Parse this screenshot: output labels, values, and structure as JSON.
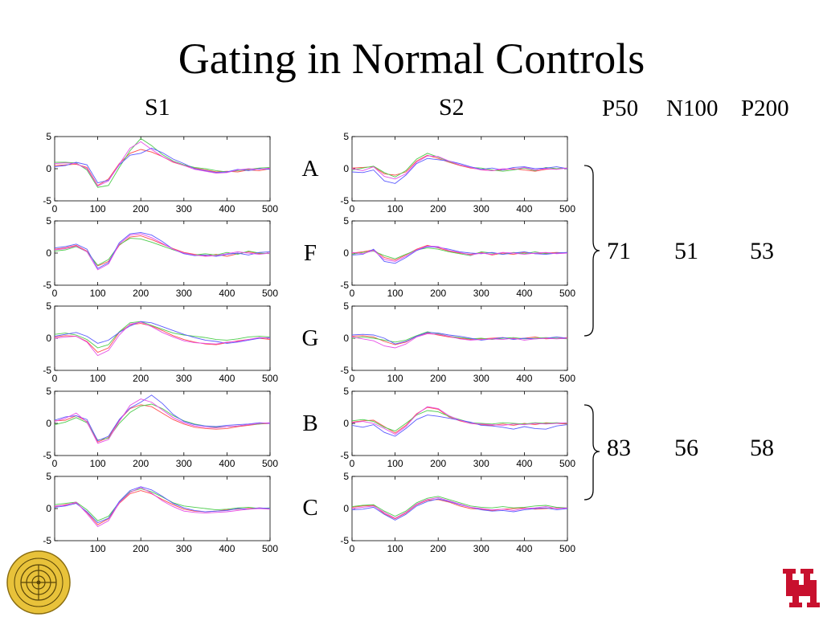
{
  "slide": {
    "title": "Gating in Normal Controls",
    "column_labels": [
      "S1",
      "S2"
    ],
    "metric_labels": [
      "P50",
      "N100",
      "P200"
    ]
  },
  "groups": [
    {
      "rows": [
        "A",
        "F",
        "G"
      ],
      "values": [
        "71",
        "51",
        "53"
      ]
    },
    {
      "rows": [
        "B",
        "C"
      ],
      "values": [
        "83",
        "56",
        "58"
      ]
    }
  ],
  "colors": {
    "red": "#ff4d4d",
    "green": "#4dcc4d",
    "blue": "#5a5aff",
    "magenta": "#e64de6",
    "logo_gold": "#e8c23a",
    "brand_red": "#c8102e"
  },
  "chart_data": {
    "type": "line",
    "x_ticks": [
      "0",
      "100",
      "200",
      "300",
      "400",
      "500"
    ],
    "y_ticks": [
      "5",
      "0",
      "-5"
    ],
    "xlim": [
      0,
      500
    ],
    "ylim": [
      -5,
      5
    ],
    "x": [
      0,
      25,
      50,
      75,
      100,
      125,
      150,
      175,
      200,
      225,
      250,
      275,
      300,
      325,
      350,
      375,
      400,
      425,
      450,
      475,
      500
    ],
    "series_colors": [
      "#ff4d4d",
      "#4dcc4d",
      "#5a5aff",
      "#e64de6"
    ],
    "panels": [
      {
        "row": "A",
        "col": "S1",
        "series": [
          [
            0.5,
            0.6,
            0.7,
            0.2,
            -2.6,
            -1.6,
            0.8,
            2.4,
            3.0,
            2.6,
            1.9,
            1.0,
            0.5,
            0.1,
            -0.2,
            -0.5,
            -0.4,
            -0.5,
            -0.2,
            -0.3,
            0.0
          ],
          [
            1.0,
            1.0,
            0.9,
            -0.2,
            -2.9,
            -2.6,
            0.2,
            2.8,
            4.7,
            3.6,
            2.2,
            1.2,
            0.6,
            0.2,
            0.0,
            -0.3,
            -0.5,
            -0.3,
            -0.1,
            0.1,
            0.2
          ],
          [
            0.3,
            0.5,
            1.0,
            0.6,
            -2.2,
            -1.8,
            0.6,
            2.1,
            2.4,
            3.2,
            2.5,
            1.5,
            0.8,
            0.0,
            -0.3,
            -0.6,
            -0.5,
            -0.1,
            -0.3,
            0.0,
            -0.1
          ],
          [
            0.8,
            0.9,
            0.8,
            0.0,
            -2.7,
            -1.9,
            0.7,
            3.2,
            4.2,
            3.0,
            1.9,
            1.1,
            0.5,
            -0.1,
            -0.4,
            -0.7,
            -0.6,
            -0.2,
            0.0,
            -0.1,
            0.1
          ]
        ]
      },
      {
        "row": "A",
        "col": "S2",
        "series": [
          [
            0.1,
            0.2,
            0.3,
            -0.8,
            -1.0,
            -0.5,
            1.2,
            2.1,
            1.6,
            1.0,
            0.5,
            0.1,
            -0.1,
            -0.3,
            -0.2,
            0.0,
            -0.2,
            -0.4,
            -0.1,
            0.0,
            0.1
          ],
          [
            -0.2,
            0.1,
            0.4,
            -0.6,
            -1.3,
            -0.3,
            1.5,
            2.4,
            1.8,
            1.1,
            0.6,
            0.2,
            0.1,
            -0.2,
            -0.4,
            -0.2,
            0.1,
            -0.3,
            0.2,
            0.0,
            0.1
          ],
          [
            -0.5,
            -0.6,
            -0.2,
            -1.9,
            -2.3,
            -1.0,
            0.8,
            1.6,
            1.4,
            1.2,
            0.8,
            0.3,
            -0.1,
            0.1,
            -0.2,
            0.2,
            0.3,
            0.0,
            0.1,
            0.3,
            0.0
          ],
          [
            0.0,
            -0.3,
            0.3,
            -1.2,
            -1.6,
            -0.8,
            1.0,
            2.0,
            1.9,
            1.2,
            0.6,
            0.2,
            -0.2,
            -0.3,
            0.0,
            -0.1,
            0.2,
            -0.2,
            0.0,
            -0.1,
            0.1
          ]
        ]
      },
      {
        "row": "F",
        "col": "S1",
        "series": [
          [
            0.6,
            0.8,
            1.2,
            0.3,
            -2.0,
            -1.3,
            1.2,
            2.5,
            2.7,
            2.1,
            1.4,
            0.7,
            0.1,
            -0.2,
            -0.4,
            -0.2,
            -0.5,
            -0.1,
            0.2,
            -0.1,
            0.0
          ],
          [
            0.3,
            0.5,
            1.0,
            0.2,
            -1.9,
            -1.0,
            1.3,
            2.3,
            2.2,
            1.7,
            1.1,
            0.5,
            0.0,
            -0.3,
            -0.1,
            -0.3,
            0.1,
            -0.2,
            0.3,
            0.0,
            -0.1
          ],
          [
            0.8,
            1.0,
            1.4,
            0.6,
            -2.4,
            -1.5,
            1.6,
            3.0,
            3.2,
            2.8,
            1.8,
            0.6,
            -0.1,
            -0.4,
            -0.3,
            -0.5,
            -0.2,
            0.0,
            -0.3,
            0.1,
            0.2
          ],
          [
            0.5,
            0.7,
            1.1,
            0.2,
            -2.6,
            -1.7,
            1.4,
            2.8,
            3.0,
            2.4,
            1.5,
            0.6,
            0.0,
            -0.3,
            -0.5,
            -0.4,
            -0.1,
            0.2,
            0.0,
            -0.2,
            0.0
          ]
        ]
      },
      {
        "row": "F",
        "col": "S2",
        "series": [
          [
            0.0,
            0.2,
            0.5,
            -0.7,
            -1.1,
            -0.3,
            0.6,
            1.2,
            0.8,
            0.3,
            0.0,
            -0.2,
            0.1,
            -0.3,
            0.0,
            -0.2,
            0.1,
            -0.1,
            0.0,
            0.1,
            0.0
          ],
          [
            -0.2,
            0.1,
            0.3,
            -0.4,
            -0.9,
            -0.2,
            0.5,
            0.8,
            0.6,
            0.2,
            -0.1,
            -0.4,
            0.2,
            0.0,
            -0.2,
            0.1,
            -0.1,
            0.2,
            -0.1,
            0.0,
            0.1
          ],
          [
            -0.3,
            -0.2,
            0.6,
            -1.3,
            -1.6,
            -0.7,
            0.4,
            1.0,
            0.9,
            0.6,
            0.2,
            0.0,
            -0.1,
            0.1,
            -0.2,
            0.0,
            0.2,
            -0.1,
            -0.2,
            0.0,
            0.1
          ],
          [
            0.1,
            -0.1,
            0.4,
            -1.0,
            -1.3,
            -0.5,
            0.5,
            1.1,
            1.0,
            0.4,
            0.1,
            -0.3,
            0.0,
            -0.2,
            0.1,
            0.0,
            -0.2,
            0.0,
            0.1,
            -0.1,
            0.0
          ]
        ]
      },
      {
        "row": "G",
        "col": "S1",
        "series": [
          [
            0.2,
            0.4,
            0.3,
            -0.5,
            -2.2,
            -1.5,
            0.9,
            2.1,
            2.3,
            1.9,
            1.2,
            0.4,
            -0.2,
            -0.6,
            -0.9,
            -1.0,
            -0.7,
            -0.4,
            -0.2,
            0.0,
            -0.2
          ],
          [
            0.6,
            0.8,
            0.5,
            -0.2,
            -1.5,
            -1.0,
            1.0,
            2.4,
            2.6,
            2.0,
            1.4,
            0.8,
            0.5,
            0.3,
            0.1,
            -0.2,
            -0.3,
            -0.1,
            0.2,
            0.3,
            0.2
          ],
          [
            0.3,
            0.6,
            0.9,
            0.3,
            -0.8,
            -0.3,
            0.9,
            1.9,
            2.6,
            2.4,
            1.8,
            1.2,
            0.6,
            0.1,
            -0.3,
            -0.5,
            -0.8,
            -0.6,
            -0.3,
            0.0,
            0.1
          ],
          [
            0.0,
            0.2,
            0.3,
            -0.6,
            -2.7,
            -1.9,
            0.5,
            2.2,
            2.5,
            1.8,
            0.9,
            0.2,
            -0.4,
            -0.7,
            -0.8,
            -0.9,
            -0.6,
            -0.5,
            -0.2,
            0.1,
            0.0
          ]
        ]
      },
      {
        "row": "G",
        "col": "S2",
        "series": [
          [
            0.3,
            0.4,
            0.2,
            -0.5,
            -1.0,
            -0.6,
            0.3,
            0.8,
            0.5,
            0.2,
            0.0,
            -0.2,
            -0.1,
            0.0,
            0.1,
            -0.1,
            0.0,
            0.2,
            -0.1,
            0.0,
            0.1
          ],
          [
            0.0,
            0.2,
            0.0,
            -0.3,
            -0.6,
            -0.3,
            0.4,
            1.0,
            0.7,
            0.3,
            0.1,
            -0.1,
            0.0,
            -0.2,
            0.0,
            0.1,
            -0.1,
            0.0,
            0.1,
            0.0,
            -0.1
          ],
          [
            0.5,
            0.6,
            0.5,
            0.0,
            -0.9,
            -0.5,
            0.3,
            0.9,
            0.8,
            0.5,
            0.3,
            0.0,
            -0.3,
            -0.1,
            0.1,
            -0.2,
            0.0,
            -0.1,
            0.0,
            0.2,
            0.0
          ],
          [
            0.2,
            -0.1,
            -0.4,
            -1.2,
            -1.5,
            -0.9,
            0.2,
            0.7,
            0.6,
            0.3,
            -0.1,
            -0.3,
            -0.2,
            -0.1,
            -0.2,
            0.0,
            -0.3,
            -0.1,
            0.0,
            -0.1,
            0.0
          ]
        ]
      },
      {
        "row": "B",
        "col": "S1",
        "series": [
          [
            0.4,
            0.5,
            1.2,
            0.3,
            -2.9,
            -2.2,
            0.5,
            2.3,
            2.9,
            2.6,
            1.6,
            0.6,
            -0.1,
            -0.6,
            -0.8,
            -0.9,
            -0.8,
            -0.5,
            -0.3,
            -0.1,
            0.0
          ],
          [
            -0.2,
            0.2,
            0.9,
            0.1,
            -2.6,
            -2.3,
            0.0,
            1.7,
            2.7,
            3.0,
            2.3,
            1.2,
            0.4,
            -0.1,
            -0.4,
            -0.6,
            -0.5,
            -0.4,
            -0.2,
            -0.1,
            0.1
          ],
          [
            0.5,
            1.0,
            1.2,
            0.6,
            -2.7,
            -2.0,
            0.6,
            2.4,
            3.3,
            4.4,
            3.1,
            1.4,
            0.3,
            -0.2,
            -0.4,
            -0.5,
            -0.3,
            -0.2,
            -0.1,
            0.1,
            0.0
          ],
          [
            0.3,
            0.8,
            1.6,
            0.2,
            -3.1,
            -2.5,
            0.3,
            2.8,
            3.8,
            3.3,
            2.1,
            0.9,
            0.1,
            -0.4,
            -0.6,
            -0.7,
            -0.5,
            -0.4,
            -0.2,
            0.0,
            0.1
          ]
        ]
      },
      {
        "row": "B",
        "col": "S2",
        "series": [
          [
            0.2,
            0.4,
            0.5,
            -0.5,
            -1.5,
            -0.3,
            1.5,
            2.5,
            2.2,
            1.0,
            0.4,
            0.0,
            -0.2,
            -0.3,
            -0.1,
            -0.3,
            0.0,
            -0.2,
            0.1,
            0.0,
            -0.1
          ],
          [
            0.4,
            0.6,
            0.3,
            -0.6,
            -1.2,
            0.0,
            1.3,
            2.0,
            1.8,
            1.1,
            0.6,
            0.1,
            0.0,
            -0.1,
            0.1,
            0.0,
            -0.1,
            0.1,
            0.0,
            0.1,
            0.0
          ],
          [
            -0.3,
            -0.6,
            -0.2,
            -1.4,
            -2.0,
            -0.8,
            0.6,
            1.3,
            1.1,
            0.8,
            0.5,
            0.2,
            -0.3,
            -0.4,
            -0.6,
            -0.9,
            -0.5,
            -0.8,
            -0.9,
            -0.4,
            -0.2
          ],
          [
            0.1,
            0.3,
            0.0,
            -0.8,
            -1.7,
            -0.5,
            1.4,
            2.6,
            2.3,
            1.2,
            0.5,
            0.0,
            -0.1,
            -0.2,
            -0.3,
            -0.1,
            -0.2,
            0.0,
            -0.1,
            0.0,
            0.1
          ]
        ]
      },
      {
        "row": "C",
        "col": "S1",
        "series": [
          [
            0.3,
            0.6,
            0.9,
            -0.6,
            -2.5,
            -1.6,
            0.8,
            2.3,
            2.8,
            2.3,
            1.4,
            0.6,
            -0.1,
            -0.4,
            -0.5,
            -0.4,
            -0.2,
            -0.1,
            0.0,
            0.1,
            0.0
          ],
          [
            0.6,
            0.8,
            1.0,
            -0.2,
            -1.9,
            -1.2,
            1.0,
            2.6,
            3.1,
            2.6,
            1.8,
            0.9,
            0.4,
            0.2,
            0.0,
            -0.2,
            -0.1,
            0.1,
            0.2,
            0.0,
            0.1
          ],
          [
            0.2,
            0.4,
            0.8,
            -0.5,
            -2.2,
            -1.5,
            1.1,
            2.8,
            3.4,
            2.9,
            1.9,
            0.8,
            0.1,
            -0.3,
            -0.5,
            -0.4,
            -0.3,
            0.0,
            -0.1,
            0.1,
            0.0
          ],
          [
            0.4,
            0.5,
            1.0,
            -0.8,
            -2.8,
            -1.9,
            0.9,
            2.5,
            3.3,
            2.4,
            1.2,
            0.3,
            -0.4,
            -0.6,
            -0.7,
            -0.6,
            -0.5,
            -0.3,
            -0.1,
            0.0,
            -0.1
          ]
        ]
      },
      {
        "row": "C",
        "col": "S2",
        "series": [
          [
            0.2,
            0.4,
            0.5,
            -0.8,
            -1.6,
            -0.7,
            0.6,
            1.3,
            1.4,
            1.0,
            0.4,
            0.0,
            -0.1,
            -0.3,
            -0.1,
            0.0,
            0.1,
            -0.1,
            0.0,
            0.1,
            0.0
          ],
          [
            0.3,
            0.5,
            0.6,
            -0.4,
            -1.2,
            -0.4,
            0.9,
            1.6,
            1.9,
            1.4,
            0.9,
            0.4,
            0.2,
            0.1,
            0.3,
            0.1,
            0.2,
            0.4,
            0.5,
            0.2,
            0.1
          ],
          [
            -0.2,
            -0.1,
            0.2,
            -0.9,
            -1.8,
            -0.9,
            0.4,
            1.1,
            1.5,
            1.1,
            0.6,
            0.2,
            -0.2,
            -0.4,
            -0.3,
            -0.5,
            -0.2,
            0.0,
            0.1,
            -0.2,
            0.0
          ],
          [
            0.0,
            0.2,
            0.4,
            -0.6,
            -1.5,
            -0.6,
            0.7,
            1.4,
            1.7,
            1.2,
            0.7,
            0.2,
            0.0,
            -0.2,
            -0.1,
            -0.3,
            0.0,
            0.1,
            0.3,
            0.0,
            0.1
          ]
        ]
      }
    ]
  }
}
